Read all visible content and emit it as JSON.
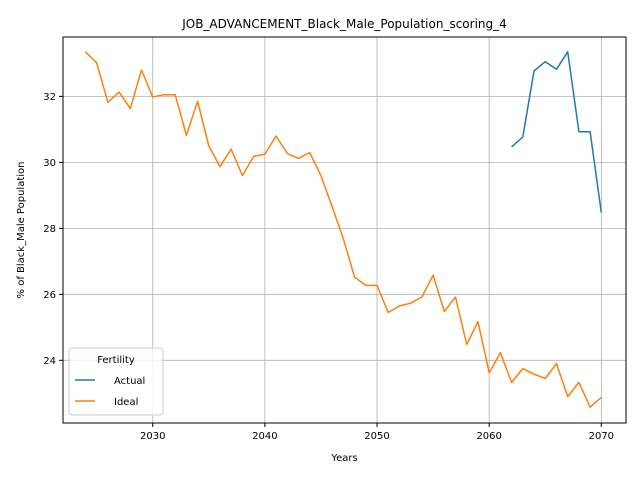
{
  "chart_data": {
    "type": "line",
    "title": "JOB_ADVANCEMENT_Black_Male_Population_scoring_4",
    "xlabel": "Years",
    "ylabel": "% of Black_Male Population",
    "xlim": [
      2022,
      2072.2
    ],
    "ylim": [
      22.1,
      33.8
    ],
    "xticks": [
      2030,
      2040,
      2050,
      2060,
      2070
    ],
    "yticks": [
      24,
      26,
      28,
      30,
      32
    ],
    "grid": true,
    "legend": {
      "title": "Fertility",
      "placement": "lower-left"
    },
    "series": [
      {
        "name": "Actual",
        "color": "#1f77b4",
        "x": [
          2062,
          2063,
          2064,
          2065,
          2066,
          2067,
          2068,
          2069,
          2070
        ],
        "y": [
          30.47,
          30.77,
          32.77,
          33.05,
          32.82,
          33.35,
          30.93,
          30.93,
          28.48
        ]
      },
      {
        "name": "Ideal",
        "color": "#ff7f0e",
        "x": [
          2024,
          2025,
          2026,
          2027,
          2028,
          2029,
          2030,
          2031,
          2032,
          2033,
          2034,
          2035,
          2036,
          2037,
          2038,
          2039,
          2040,
          2041,
          2042,
          2043,
          2044,
          2045,
          2046,
          2047,
          2048,
          2049,
          2050,
          2051,
          2052,
          2053,
          2054,
          2055,
          2056,
          2057,
          2058,
          2059,
          2060,
          2061,
          2062,
          2063,
          2064,
          2065,
          2066,
          2067,
          2068,
          2069,
          2070
        ],
        "y": [
          33.35,
          33.02,
          31.82,
          32.13,
          31.63,
          32.8,
          31.98,
          32.05,
          32.05,
          30.82,
          31.85,
          30.5,
          29.87,
          30.4,
          29.6,
          30.18,
          30.25,
          30.8,
          30.27,
          30.12,
          30.3,
          29.6,
          28.65,
          27.68,
          26.52,
          26.27,
          26.27,
          25.45,
          25.65,
          25.73,
          25.92,
          26.58,
          25.48,
          25.92,
          24.48,
          25.17,
          23.62,
          24.23,
          23.33,
          23.75,
          23.58,
          23.45,
          23.9,
          22.9,
          23.33,
          22.58,
          22.88
        ]
      }
    ]
  }
}
